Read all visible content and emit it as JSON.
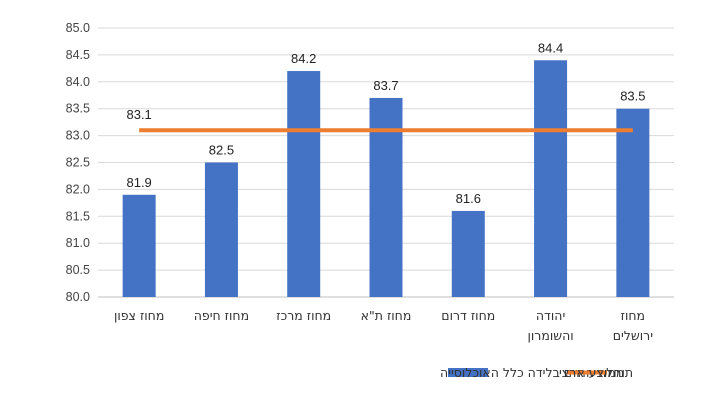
{
  "chart_data": {
    "type": "bar",
    "categories": [
      [
        "מחוז צפון"
      ],
      [
        "מחוז חיפה"
      ],
      [
        "מחוז מרכז"
      ],
      [
        "מחוז ת\"א"
      ],
      [
        "מחוז דרום"
      ],
      [
        "יהודה",
        "והשומרון"
      ],
      [
        "מחוז",
        "ירושלים"
      ]
    ],
    "series": [
      {
        "name": "תוחלת החיים בלידה כלל האוכלוסייה",
        "type": "bar",
        "color": "#4472C4",
        "values": [
          81.9,
          82.5,
          84.2,
          83.7,
          81.6,
          84.4,
          83.5
        ]
      },
      {
        "name": "ממוצע ארצי",
        "type": "line",
        "color": "#ED7D31",
        "value": 83.1,
        "label": "83.1"
      }
    ],
    "data_labels": [
      "81.9",
      "82.5",
      "84.2",
      "83.7",
      "81.6",
      "84.4",
      "83.5"
    ],
    "ylim": [
      80.0,
      85.0
    ],
    "yticks": [
      "80.0",
      "80.5",
      "81.0",
      "81.5",
      "82.0",
      "82.5",
      "83.0",
      "83.5",
      "84.0",
      "84.5",
      "85.0"
    ],
    "grid": true,
    "legend_position": "bottom",
    "title": "",
    "xlabel": "",
    "ylabel": ""
  }
}
